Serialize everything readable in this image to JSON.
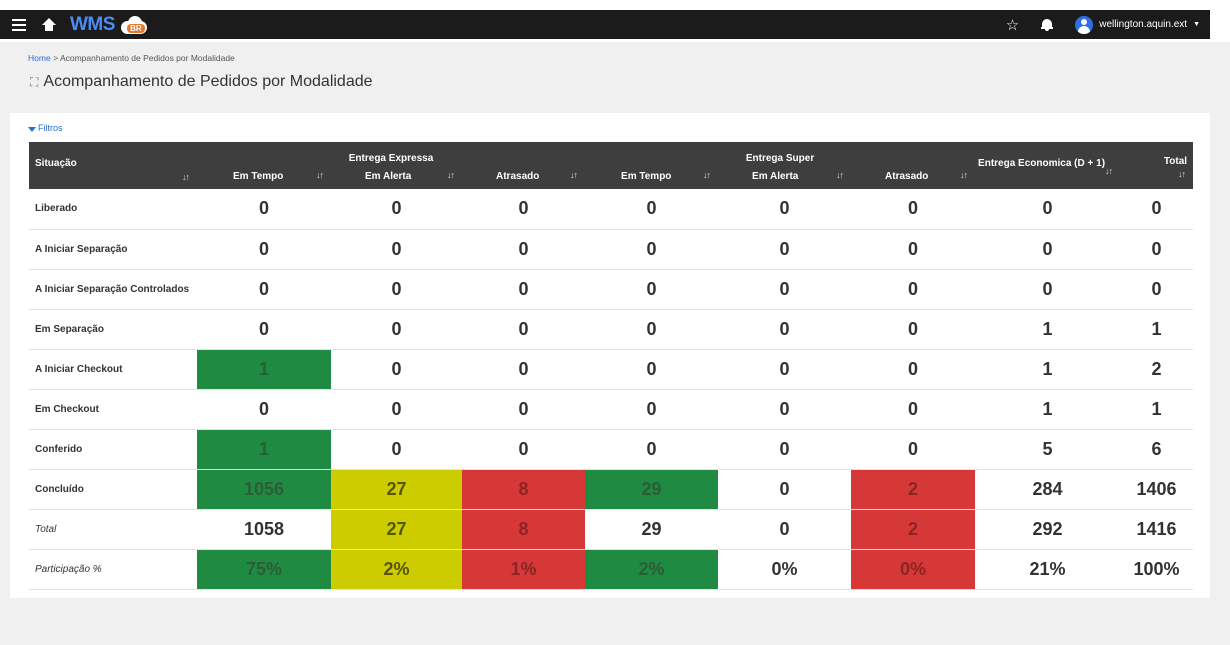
{
  "app": {
    "logo_text": "WMS",
    "logo_badge": "BR"
  },
  "user": {
    "name": "wellington.aquin.ext"
  },
  "breadcrumb": {
    "home": "Home",
    "separator": ">",
    "current": "Acompanhamento de Pedidos por Modalidade"
  },
  "page": {
    "title": "Acompanhamento de Pedidos por Modalidade"
  },
  "filters": {
    "label": "Filtros"
  },
  "table": {
    "group_headers": [
      "Entrega Expressa",
      "Entrega Super"
    ],
    "columns": [
      "Situação",
      "Em Tempo",
      "Em Alerta",
      "Atrasado",
      "Em Tempo",
      "Em Alerta",
      "Atrasado",
      "Entrega Economica (D + 1)",
      "Total"
    ],
    "rows": [
      {
        "label": "Liberado",
        "values": [
          "0",
          "0",
          "0",
          "0",
          "0",
          "0",
          "0",
          "0"
        ],
        "status": [
          "",
          "",
          "",
          "",
          "",
          "",
          "",
          ""
        ]
      },
      {
        "label": "A Iniciar Separação",
        "values": [
          "0",
          "0",
          "0",
          "0",
          "0",
          "0",
          "0",
          "0"
        ],
        "status": [
          "",
          "",
          "",
          "",
          "",
          "",
          "",
          ""
        ]
      },
      {
        "label": "A Iniciar Separação Controlados",
        "values": [
          "0",
          "0",
          "0",
          "0",
          "0",
          "0",
          "0",
          "0"
        ],
        "status": [
          "",
          "",
          "",
          "",
          "",
          "",
          "",
          ""
        ]
      },
      {
        "label": "Em Separação",
        "values": [
          "0",
          "0",
          "0",
          "0",
          "0",
          "0",
          "1",
          "1"
        ],
        "status": [
          "",
          "",
          "",
          "",
          "",
          "",
          "",
          ""
        ]
      },
      {
        "label": "A Iniciar Checkout",
        "values": [
          "1",
          "0",
          "0",
          "0",
          "0",
          "0",
          "1",
          "2"
        ],
        "status": [
          "green",
          "",
          "",
          "",
          "",
          "",
          "",
          ""
        ]
      },
      {
        "label": "Em Checkout",
        "values": [
          "0",
          "0",
          "0",
          "0",
          "0",
          "0",
          "1",
          "1"
        ],
        "status": [
          "",
          "",
          "",
          "",
          "",
          "",
          "",
          ""
        ]
      },
      {
        "label": "Conferido",
        "values": [
          "1",
          "0",
          "0",
          "0",
          "0",
          "0",
          "5",
          "6"
        ],
        "status": [
          "green",
          "",
          "",
          "",
          "",
          "",
          "",
          ""
        ]
      },
      {
        "label": "Concluído",
        "values": [
          "1056",
          "27",
          "8",
          "29",
          "0",
          "2",
          "284",
          "1406"
        ],
        "status": [
          "green",
          "yellow",
          "red",
          "green",
          "",
          "red",
          "",
          ""
        ]
      },
      {
        "label": "Total",
        "italic": true,
        "values": [
          "1058",
          "27",
          "8",
          "29",
          "0",
          "2",
          "292",
          "1416"
        ],
        "status": [
          "",
          "yellow",
          "red",
          "",
          "",
          "red",
          "",
          ""
        ]
      },
      {
        "label": "Participação %",
        "italic": true,
        "values": [
          "75%",
          "2%",
          "1%",
          "2%",
          "0%",
          "0%",
          "21%",
          "100%"
        ],
        "status": [
          "green",
          "yellow",
          "red",
          "green",
          "",
          "red",
          "",
          ""
        ]
      }
    ]
  },
  "colors": {
    "green": "#1e8a42",
    "yellow": "#cccc00",
    "red": "#d63838",
    "header": "#3e3e3e",
    "link": "#2a6fd6"
  },
  "icons": [
    "menu-icon",
    "home-icon",
    "star-icon",
    "bell-icon",
    "user-avatar-icon",
    "caret-down-icon",
    "expand-icon",
    "filter-icon",
    "sort-icon"
  ]
}
